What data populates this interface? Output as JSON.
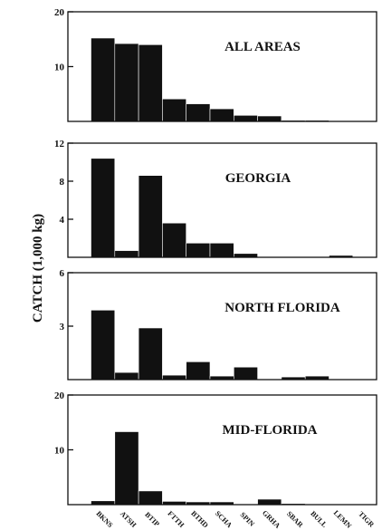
{
  "figure": {
    "ylabel": "CATCH (1,000 kg)",
    "categories": [
      "BKNS",
      "ATSH",
      "BTIP",
      "FTTH",
      "BTHD",
      "SCHA",
      "SPIN",
      "GRHA",
      "SBAR",
      "BULL",
      "LEMN",
      "TIGR"
    ],
    "colors": {
      "bars": "#111111",
      "frame": "#111111",
      "background": "#ffffff"
    }
  },
  "chart_data": [
    {
      "type": "bar",
      "title": "ALL AREAS",
      "categories": [
        "BKNS",
        "ATSH",
        "BTIP",
        "FTTH",
        "BTHD",
        "SCHA",
        "SPIN",
        "GRHA",
        "SBAR",
        "BULL",
        "LEMN",
        "TIGR"
      ],
      "values": [
        15.2,
        14.2,
        14.0,
        4.1,
        3.2,
        2.3,
        1.1,
        1.0,
        0.2,
        0.2,
        0.05,
        0.0
      ],
      "ylim": [
        0,
        20
      ],
      "yticks": [
        10,
        20
      ],
      "xlabel": "",
      "ylabel": "CATCH (1,000 kg)",
      "grid": false
    },
    {
      "type": "bar",
      "title": "GEORGIA",
      "categories": [
        "BKNS",
        "ATSH",
        "BTIP",
        "FTTH",
        "BTHD",
        "SCHA",
        "SPIN",
        "GRHA",
        "SBAR",
        "BULL",
        "LEMN",
        "TIGR"
      ],
      "values": [
        10.4,
        0.7,
        8.6,
        3.6,
        1.5,
        1.5,
        0.4,
        0.0,
        0.0,
        0.0,
        0.2,
        0.0
      ],
      "ylim": [
        0,
        12
      ],
      "yticks": [
        4,
        8,
        12
      ],
      "xlabel": "",
      "ylabel": "CATCH (1,000 kg)",
      "grid": false
    },
    {
      "type": "bar",
      "title": "NORTH FLORIDA",
      "categories": [
        "BKNS",
        "ATSH",
        "BTIP",
        "FTTH",
        "BTHD",
        "SCHA",
        "SPIN",
        "GRHA",
        "SBAR",
        "BULL",
        "LEMN",
        "TIGR"
      ],
      "values": [
        3.9,
        0.4,
        2.9,
        0.25,
        1.0,
        0.2,
        0.7,
        0.0,
        0.15,
        0.2,
        0.0,
        0.0
      ],
      "ylim": [
        0,
        6
      ],
      "yticks": [
        3,
        6
      ],
      "xlabel": "",
      "ylabel": "CATCH (1,000 kg)",
      "grid": false
    },
    {
      "type": "bar",
      "title": "MID-FLORIDA",
      "categories": [
        "BKNS",
        "ATSH",
        "BTIP",
        "FTTH",
        "BTHD",
        "SCHA",
        "SPIN",
        "GRHA",
        "SBAR",
        "BULL",
        "LEMN",
        "TIGR"
      ],
      "values": [
        0.7,
        13.3,
        2.5,
        0.6,
        0.5,
        0.5,
        0.0,
        1.0,
        0.2,
        0.0,
        0.0,
        0.0
      ],
      "ylim": [
        0,
        20
      ],
      "yticks": [
        10,
        20
      ],
      "xlabel": "",
      "ylabel": "CATCH (1,000 kg)",
      "grid": false
    }
  ]
}
